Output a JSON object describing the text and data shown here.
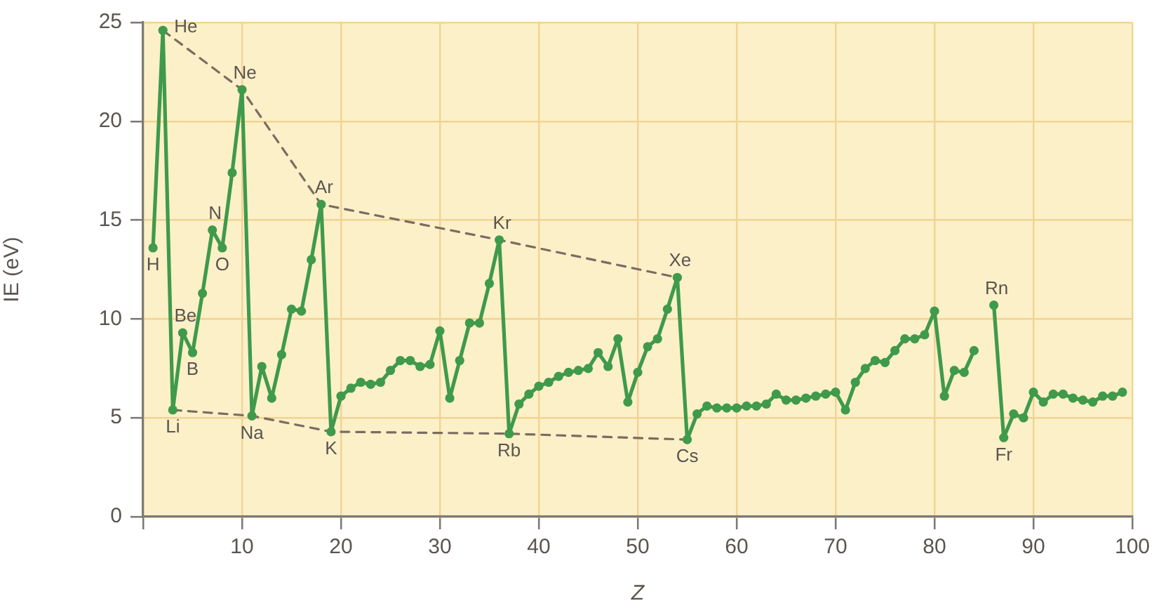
{
  "chart_data": {
    "type": "line",
    "xlabel": "Z",
    "ylabel": "IE (eV)",
    "x": [
      1,
      2,
      3,
      4,
      5,
      6,
      7,
      8,
      9,
      10,
      11,
      12,
      13,
      14,
      15,
      16,
      17,
      18,
      19,
      20,
      21,
      22,
      23,
      24,
      25,
      26,
      27,
      28,
      29,
      30,
      31,
      32,
      33,
      34,
      35,
      36,
      37,
      38,
      39,
      40,
      41,
      42,
      43,
      44,
      45,
      46,
      47,
      48,
      49,
      50,
      51,
      52,
      53,
      54,
      55,
      56,
      57,
      58,
      59,
      60,
      61,
      62,
      63,
      64,
      65,
      66,
      67,
      68,
      69,
      70,
      71,
      72,
      73,
      74,
      75,
      76,
      77,
      78,
      79,
      80,
      81,
      82,
      83,
      84,
      85,
      86,
      87,
      88,
      89,
      90,
      91,
      92,
      93,
      94,
      95,
      96,
      97,
      98,
      99
    ],
    "xlim": [
      0,
      100
    ],
    "xticks": [
      {
        "value": 0,
        "label": null
      },
      10,
      20,
      30,
      40,
      50,
      60,
      70,
      80,
      90,
      100
    ],
    "ylim": [
      0,
      25
    ],
    "yticks": [
      0,
      5,
      10,
      15,
      20,
      25
    ],
    "grid": true,
    "marker": "circle",
    "line_style": "solid",
    "series": [
      {
        "color": "#3f9a4c",
        "values": [
          13.6,
          24.6,
          5.4,
          9.3,
          8.3,
          11.3,
          14.5,
          13.6,
          17.4,
          21.6,
          5.1,
          7.6,
          6.0,
          8.2,
          10.5,
          10.4,
          13.0,
          15.8,
          4.3,
          6.1,
          6.5,
          6.8,
          6.7,
          6.8,
          7.4,
          7.9,
          7.9,
          7.6,
          7.7,
          9.4,
          6.0,
          7.9,
          9.8,
          9.8,
          11.8,
          14.0,
          4.2,
          5.7,
          6.2,
          6.6,
          6.8,
          7.1,
          7.3,
          7.4,
          7.5,
          8.3,
          7.6,
          9.0,
          5.8,
          7.3,
          8.6,
          9.0,
          10.5,
          12.1,
          3.9,
          5.2,
          5.6,
          5.5,
          5.5,
          5.5,
          5.6,
          5.6,
          5.7,
          6.2,
          5.9,
          5.9,
          6.0,
          6.1,
          6.2,
          6.3,
          5.4,
          6.8,
          7.5,
          7.9,
          7.8,
          8.4,
          9.0,
          9.0,
          9.2,
          10.4,
          6.1,
          7.4,
          7.3,
          8.4,
          null,
          10.7,
          4.0,
          5.2,
          5.0,
          6.3,
          5.8,
          6.2,
          6.2,
          6.0,
          5.9,
          5.8,
          6.1,
          6.1,
          6.3
        ]
      },
      {
        "type": "line",
        "x": [
          2,
          10,
          18,
          36,
          54
        ],
        "color": "#7a6c60",
        "values": [
          24.6,
          21.6,
          15.8,
          14.0,
          12.1
        ],
        "marker": "none",
        "line_style": "dashed"
      },
      {
        "type": "line",
        "x": [
          3,
          11,
          19,
          37,
          55
        ],
        "color": "#7a6c60",
        "values": [
          5.4,
          5.1,
          4.3,
          4.2,
          3.9
        ],
        "marker": "none",
        "line_style": "dashed"
      }
    ],
    "annotations": [
      {
        "text": "H",
        "x": 1,
        "y": 13.6
      },
      {
        "text": "He",
        "x": 2,
        "y": 24.6
      },
      {
        "text": "Li",
        "x": 3,
        "y": 5.4
      },
      {
        "text": "Be",
        "x": 4,
        "y": 9.3
      },
      {
        "text": "B",
        "x": 5,
        "y": 8.3
      },
      {
        "text": "N",
        "x": 7,
        "y": 14.5
      },
      {
        "text": "O",
        "x": 8,
        "y": 13.6
      },
      {
        "text": "Ne",
        "x": 10,
        "y": 21.6
      },
      {
        "text": "Na",
        "x": 11,
        "y": 5.1
      },
      {
        "text": "Ar",
        "x": 18,
        "y": 15.8
      },
      {
        "text": "K",
        "x": 19,
        "y": 4.3
      },
      {
        "text": "Kr",
        "x": 36,
        "y": 14.0
      },
      {
        "text": "Rb",
        "x": 37,
        "y": 4.2
      },
      {
        "text": "Xe",
        "x": 54,
        "y": 12.1
      },
      {
        "text": "Cs",
        "x": 55,
        "y": 3.9
      },
      {
        "text": "Rn",
        "x": 86,
        "y": 10.7
      },
      {
        "text": "Fr",
        "x": 87,
        "y": 4.0
      }
    ]
  }
}
